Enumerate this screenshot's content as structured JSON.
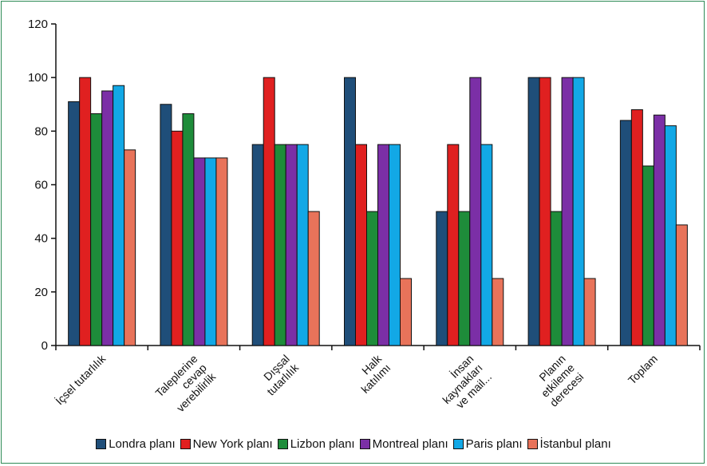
{
  "chart_data": {
    "type": "bar",
    "title": "",
    "xlabel": "",
    "ylabel": "",
    "ylim": [
      0,
      120
    ],
    "yticks": [
      0,
      20,
      40,
      60,
      80,
      100,
      120
    ],
    "grid": false,
    "legend_position": "bottom",
    "categories": [
      [
        "İçsel tutarlılık"
      ],
      [
        "Taleplerine",
        "cevap",
        "verebilirlik"
      ],
      [
        "Dışsal",
        "tutarlılık"
      ],
      [
        "Halk",
        "katılımı"
      ],
      [
        "İnsan",
        "kaynakları",
        "ve mail..."
      ],
      [
        "Planın",
        "etkileme",
        "derecesi"
      ],
      [
        "Toplam"
      ]
    ],
    "series": [
      {
        "name": "Londra planı",
        "color": "#1f4e79",
        "values": [
          91,
          90,
          75,
          100,
          50,
          100,
          84
        ]
      },
      {
        "name": "New York planı",
        "color": "#e02020",
        "values": [
          100,
          80,
          100,
          75,
          75,
          100,
          88
        ]
      },
      {
        "name": "Lizbon planı",
        "color": "#1e8c3a",
        "values": [
          86.5,
          86.5,
          75,
          50,
          50,
          50,
          67
        ]
      },
      {
        "name": "Montreal planı",
        "color": "#7b2fa6",
        "values": [
          95,
          70,
          75,
          75,
          100,
          100,
          86
        ]
      },
      {
        "name": "Paris planı",
        "color": "#12a8e6",
        "values": [
          97,
          70,
          75,
          75,
          75,
          100,
          82
        ]
      },
      {
        "name": "İstanbul planı",
        "color": "#e8735a",
        "values": [
          73,
          70,
          50,
          25,
          25,
          25,
          45
        ]
      }
    ]
  }
}
